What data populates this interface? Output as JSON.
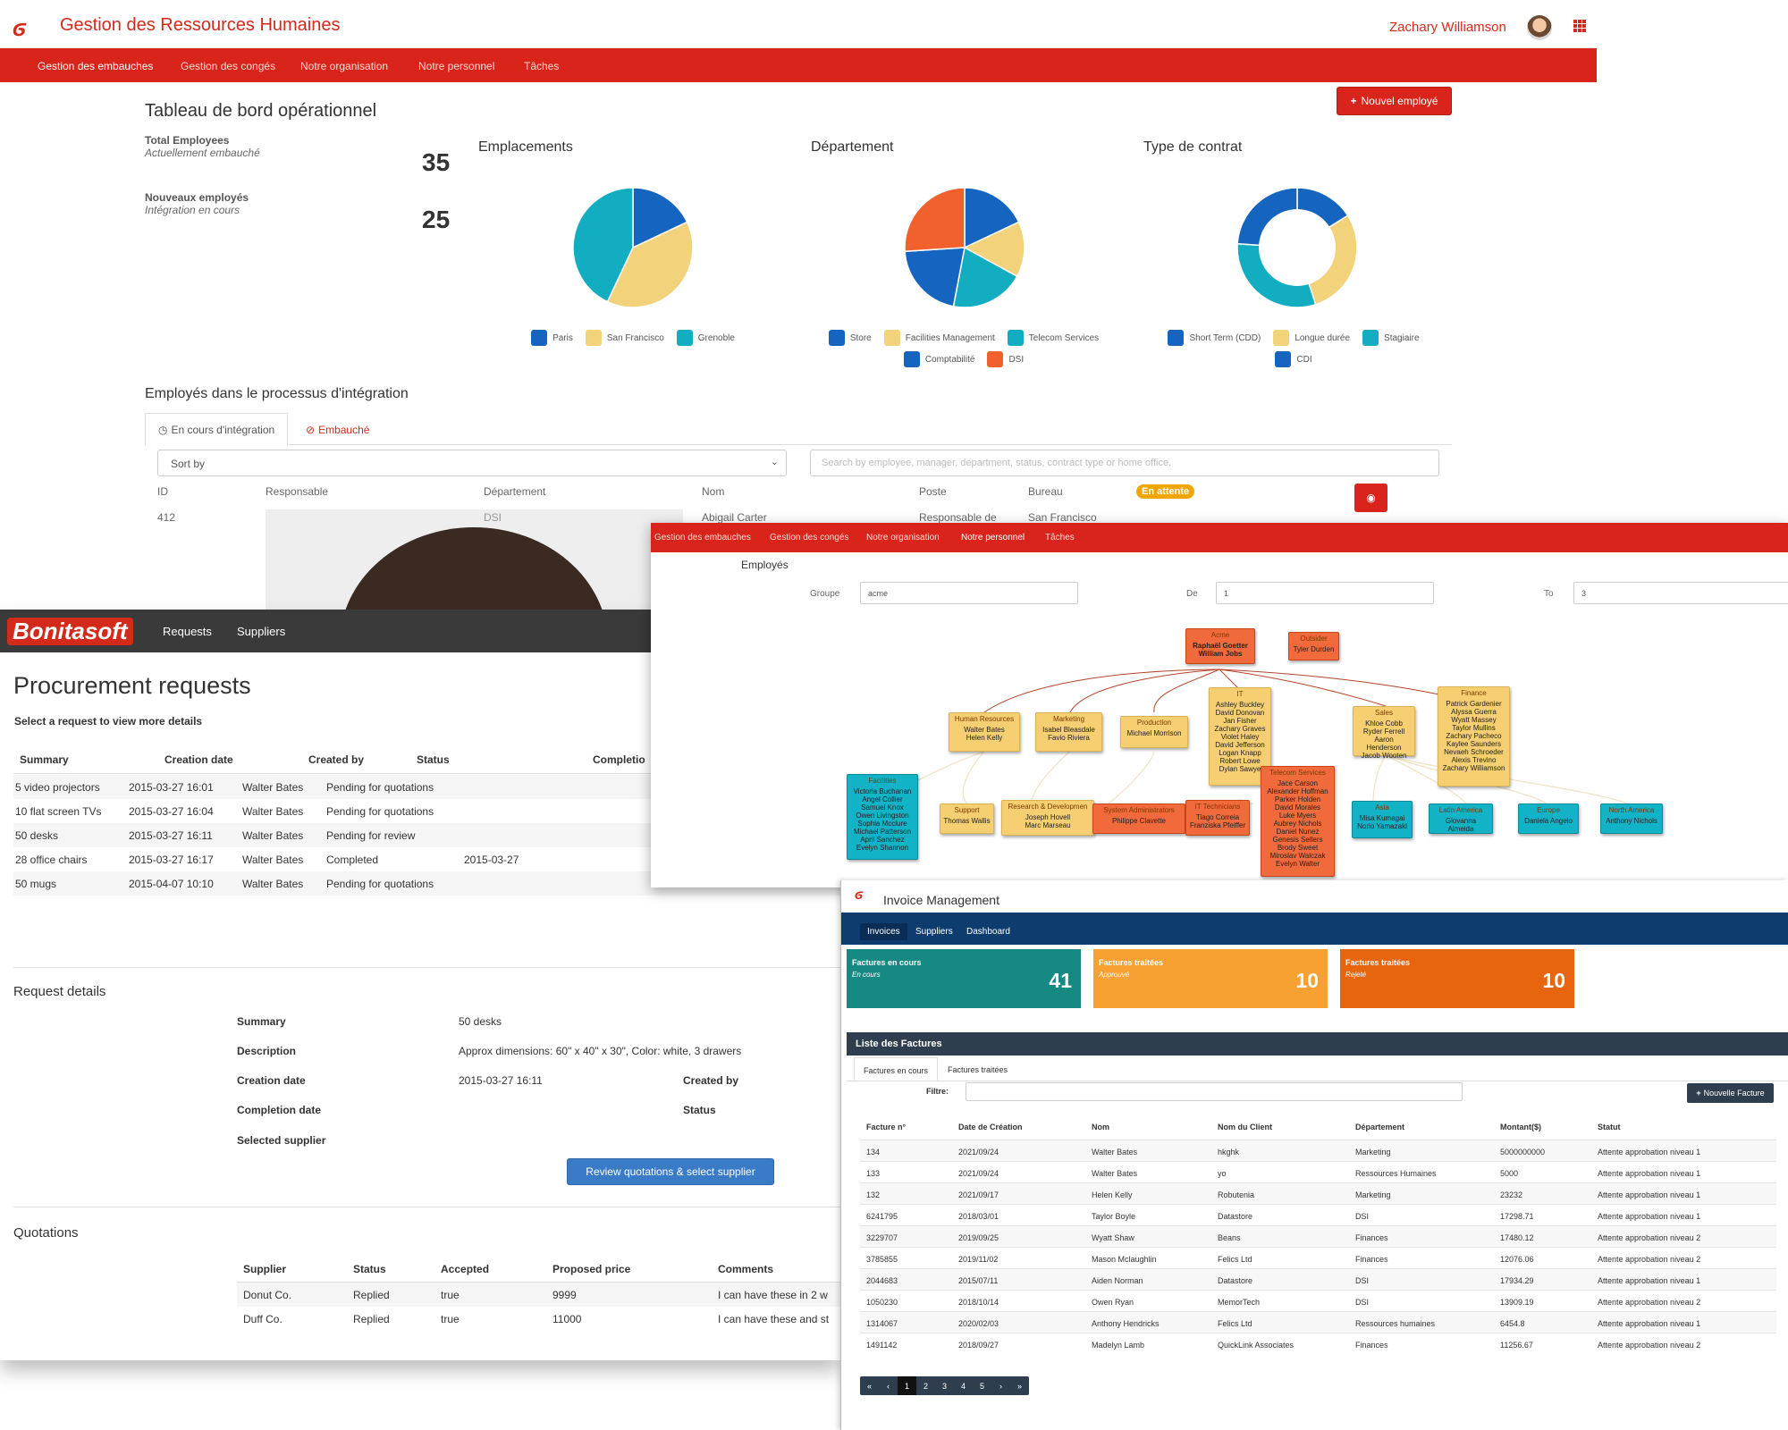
{
  "hr": {
    "title": "Gestion des Ressources Humaines",
    "user_name": "Zachary Williamson",
    "nav": [
      "Gestion des embauches",
      "Gestion des congés",
      "Notre organisation",
      "Notre personnel",
      "Tâches"
    ],
    "dashboard_title": "Tableau de bord opérationnel",
    "new_employee_button": "Nouvel employé",
    "kpis": [
      {
        "label": "Total Employees",
        "sub": "Actuellement embauché",
        "value": "35"
      },
      {
        "label": "Nouveaux employés",
        "sub": "Intégration en cours",
        "value": "25"
      }
    ],
    "charts": [
      {
        "title": "Emplacements",
        "type": "pie",
        "legend": [
          "Paris",
          "San Francisco",
          "Grenoble"
        ]
      },
      {
        "title": "Département",
        "type": "pie",
        "legend": [
          "Store",
          "Facilities Management",
          "Telecom Services",
          "Comptabilité",
          "DSI"
        ]
      },
      {
        "title": "Type de contrat",
        "type": "donut",
        "legend": [
          "Short Term (CDD)",
          "Longue durée",
          "Stagiaire",
          "CDI"
        ]
      }
    ],
    "section_title": "Employés dans le processus d'intégration",
    "tabs": [
      "En cours d'intégration",
      "Embauché"
    ],
    "sort_placeholder": "Sort by",
    "search_placeholder": "Search by employee, manager, department, status, contract type or home office.",
    "columns": [
      "ID",
      "Responsable",
      "Département",
      "Nom",
      "Poste",
      "Bureau"
    ],
    "row": {
      "id": "412",
      "department": "DSI",
      "name": "Abigail Carter",
      "poste": "Responsable de",
      "bureau": "San Francisco"
    },
    "status_badge": "En attente"
  },
  "chart_data": [
    {
      "type": "pie",
      "title": "Emplacements",
      "categories": [
        "Paris",
        "San Francisco",
        "Grenoble"
      ],
      "values": [
        18,
        39,
        43
      ],
      "colors": [
        "#1565c0",
        "#f2d27a",
        "#13adc2"
      ]
    },
    {
      "type": "pie",
      "title": "Département",
      "categories": [
        "Store",
        "Facilities Management",
        "Telecom Services",
        "Comptabilité",
        "DSI"
      ],
      "values": [
        18,
        15,
        20,
        21,
        26
      ],
      "colors": [
        "#1565c0",
        "#f2d27a",
        "#13adc2",
        "#1565c0",
        "#f0612d"
      ]
    },
    {
      "type": "pie",
      "title": "Type de contrat",
      "categories": [
        "Short Term (CDD)",
        "Longue durée",
        "Stagiaire",
        "CDI"
      ],
      "values": [
        16,
        29,
        31,
        24
      ],
      "colors": [
        "#1565c0",
        "#f2d27a",
        "#13adc2",
        "#1565c0"
      ]
    }
  ],
  "proc": {
    "brand": "Bonitasoft",
    "nav": [
      "Requests",
      "Suppliers"
    ],
    "title": "Procurement requests",
    "subtitle": "Select a request to view more details",
    "columns": [
      "Summary",
      "Creation date",
      "Created by",
      "Status",
      "Completio"
    ],
    "rows": [
      {
        "summary": "5 video projectors",
        "date": "2015-03-27 16:01",
        "by": "Walter Bates",
        "status": "Pending for quotations",
        "completion": ""
      },
      {
        "summary": "10 flat screen TVs",
        "date": "2015-03-27 16:04",
        "by": "Walter Bates",
        "status": "Pending for quotations",
        "completion": ""
      },
      {
        "summary": "50 desks",
        "date": "2015-03-27 16:11",
        "by": "Walter Bates",
        "status": "Pending for review",
        "completion": ""
      },
      {
        "summary": "28 office chairs",
        "date": "2015-03-27 16:17",
        "by": "Walter Bates",
        "status": "Completed",
        "completion": "2015-03-27"
      },
      {
        "summary": "50 mugs",
        "date": "2015-04-07 10:10",
        "by": "Walter Bates",
        "status": "Pending for quotations",
        "completion": ""
      }
    ],
    "details_title": "Request details",
    "details": {
      "summary_label": "Summary",
      "summary": "50 desks",
      "description_label": "Description",
      "description": "Approx dimensions: 60\" x 40\" x 30\", Color: white, 3 drawers",
      "creation_label": "Creation date",
      "creation": "2015-03-27 16:11",
      "created_by_label": "Created by",
      "completion_label": "Completion date",
      "status_label": "Status",
      "supplier_label": "Selected supplier"
    },
    "review_button": "Review quotations & select supplier",
    "quotations_title": "Quotations",
    "q_columns": [
      "Supplier",
      "Status",
      "Accepted",
      "Proposed price",
      "Comments"
    ],
    "quotations": [
      {
        "supplier": "Donut Co.",
        "status": "Replied",
        "accepted": "true",
        "price": "9999",
        "comment": "I can have these in 2 w"
      },
      {
        "supplier": "Duff Co.",
        "status": "Replied",
        "accepted": "true",
        "price": "11000",
        "comment": "I can have these and st"
      }
    ]
  },
  "org": {
    "nav": [
      "Gestion des embauches",
      "Gestion des congés",
      "Notre organisation",
      "Notre personnel",
      "Tâches"
    ],
    "title": "Employés",
    "group_label": "Groupe",
    "group_value": "acme",
    "from_label": "De",
    "from_value": "1",
    "to_label": "To",
    "to_value": "3",
    "nodes": {
      "acme": {
        "head": "Acme",
        "people": "Raphaël Goetter\nWilliam Jobs"
      },
      "outsider": {
        "head": "Outsider",
        "people": "Tyler Durden"
      },
      "hr": {
        "head": "Human Resources",
        "people": "Walter Bates\nHelen Kelly"
      },
      "marketing": {
        "head": "Marketing",
        "people": "Isabel Bleasdale\nFavio Riviera"
      },
      "production": {
        "head": "Production",
        "people": "Michael Morrison"
      },
      "it": {
        "head": "IT",
        "people": "Ashley Buckley\nDavid Donovan\nJan Fisher\nZachary Graves\nViolet Haley\nDavid Jefferson\nLogan Knapp\nRobert Lowe\nDylan Sawye"
      },
      "sales": {
        "head": "Sales",
        "people": "Khloe Cobb\nRyder Ferrell\nAaron Henderson\nJacob Wooten"
      },
      "finance": {
        "head": "Finance",
        "people": "Patrick Gardenier\nAlyssa Guerra\nWyatt Massey\nTaylor Mullins\nZachary Pacheco\nKaylee Saunders\nNevaeh Schroeder\nAlexis Trevino\nZachary Williamson"
      },
      "facilities": {
        "head": "Facilities",
        "people": "Victoria Buchanan\nAngel Collier\nSamuel Knox\nOwen Livingston\nSophia Mcclure\nMichael Patterson\nApril Sanchez\nEvelyn Shannon"
      },
      "support": {
        "head": "Support",
        "people": "Thomas Wallis"
      },
      "rnd": {
        "head": "Research & Developmen",
        "people": "Joseph Hovell\nMarc Marseau"
      },
      "sysadmin": {
        "head": "System Administrators",
        "people": "Philippe Clavette"
      },
      "ittech": {
        "head": "IT Technicians",
        "people": "Tiago Correia\nFranziska Pfeiffer"
      },
      "telecom": {
        "head": "Telecom Services",
        "people": "Jace Carson\nAlexander Hoffman\nParker Holden\nDavid Morales\nLuke Myers\nAubrey Nichols\nDaniel Nunez\nGenesis Sellers\nBrody Sweet\nMiroslav Walczak\nEvelyn Walter"
      },
      "asia": {
        "head": "Asia",
        "people": "Misa Kumagai\nNorio Yamazaki"
      },
      "latam": {
        "head": "Latin America",
        "people": "Giovanna Almeida"
      },
      "europe": {
        "head": "Europe",
        "people": "Daniela Angelo"
      },
      "na": {
        "head": "North America",
        "people": "Anthony Nichols"
      }
    }
  },
  "inv": {
    "title": "Invoice Management",
    "nav": [
      "Invoices",
      "Suppliers",
      "Dashboard"
    ],
    "tiles": [
      {
        "label": "Factures en cours",
        "sub": "En cours",
        "value": "41",
        "color": "#168a82"
      },
      {
        "label": "Factures traitées",
        "sub": "Approuvé",
        "value": "10",
        "color": "#f7a132"
      },
      {
        "label": "Factures traitées",
        "sub": "Rejeté",
        "value": "10",
        "color": "#e8650f"
      }
    ],
    "list_title": "Liste des Factures",
    "tabs": [
      "Factures en cours",
      "Factures traitées"
    ],
    "filter_label": "Filtre:",
    "new_button": "Nouvelle Facture",
    "columns": [
      "Facture n°",
      "Date de Création",
      "Nom",
      "Nom du Client",
      "Département",
      "Montant($)",
      "Statut"
    ],
    "rows": [
      [
        "134",
        "2021/09/24",
        "Walter Bates",
        "hkghk",
        "Marketing",
        "5000000000",
        "Attente approbation niveau 1"
      ],
      [
        "133",
        "2021/09/24",
        "Walter Bates",
        "yo",
        "Ressources Humaines",
        "5000",
        "Attente approbation niveau 1"
      ],
      [
        "132",
        "2021/09/17",
        "Helen Kelly",
        "Robutenia",
        "Marketing",
        "23232",
        "Attente approbation niveau 1"
      ],
      [
        "6241795",
        "2018/03/01",
        "Taylor Boyle",
        "Datastore",
        "DSI",
        "17298.71",
        "Attente approbation niveau 1"
      ],
      [
        "3229707",
        "2019/09/25",
        "Wyatt Shaw",
        "Beans",
        "Finances",
        "17480.12",
        "Attente approbation niveau 2"
      ],
      [
        "3785855",
        "2019/11/02",
        "Mason Mclaughlin",
        "Felics Ltd",
        "Finances",
        "12076.06",
        "Attente approbation niveau 2"
      ],
      [
        "2044683",
        "2015/07/11",
        "Aiden Norman",
        "Datastore",
        "DSI",
        "17934.29",
        "Attente approbation niveau 1"
      ],
      [
        "1050230",
        "2018/10/14",
        "Owen Ryan",
        "MemorTech",
        "DSI",
        "13909.19",
        "Attente approbation niveau 2"
      ],
      [
        "1314067",
        "2020/02/03",
        "Anthony Hendricks",
        "Felics Ltd",
        "Ressources humaines",
        "6454.8",
        "Attente approbation niveau 1"
      ],
      [
        "1491142",
        "2018/09/27",
        "Madelyn Lamb",
        "QuickLink Associates",
        "Finances",
        "11256.67",
        "Attente approbation niveau 2"
      ]
    ],
    "pager": [
      "«",
      "‹",
      "1",
      "2",
      "3",
      "4",
      "5",
      "›",
      "»"
    ],
    "pager_active": "1"
  }
}
